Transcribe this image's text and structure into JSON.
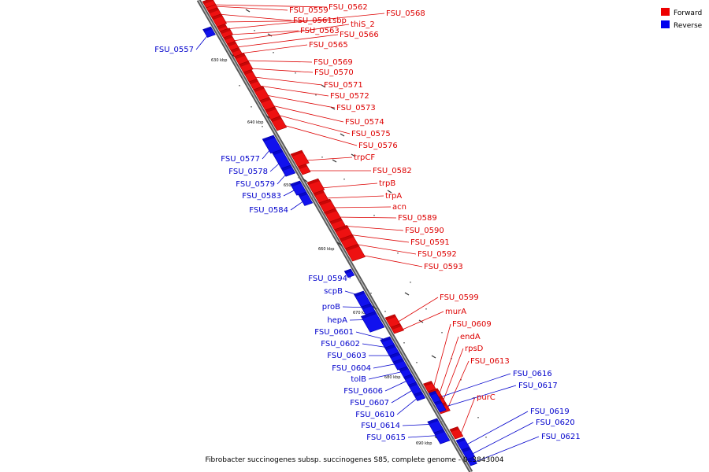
{
  "caption": "Fibrobacter succinogenes subsp. succinogenes S85, complete genome - 0..3843004",
  "legend": [
    {
      "label": "Forward",
      "color": "#ee0000"
    },
    {
      "label": "Reverse",
      "color": "#0000ee"
    }
  ],
  "scale_labels": [
    "630 kbp",
    "640 kbp",
    "650 kbp",
    "660 kbp",
    "670 kbp",
    "680 kbp",
    "690 kbp"
  ],
  "forward_genes": [
    "FSU_0559",
    "FSU_0561",
    "FSU_0562",
    "sbp",
    "FSU_0568",
    "FSU_0563",
    "thiS_2",
    "FSU_0566",
    "FSU_0565",
    "FSU_0569",
    "FSU_0570",
    "FSU_0571",
    "FSU_0572",
    "FSU_0573",
    "FSU_0574",
    "FSU_0575",
    "FSU_0576",
    "trpCF",
    "FSU_0582",
    "trpB",
    "trpA",
    "acn",
    "FSU_0589",
    "FSU_0590",
    "FSU_0591",
    "FSU_0592",
    "FSU_0593",
    "FSU_0599",
    "murA",
    "FSU_0609",
    "endA",
    "rpsD",
    "FSU_0613",
    "purC"
  ],
  "reverse_genes": [
    "FSU_0557",
    "FSU_0577",
    "FSU_0578",
    "FSU_0579",
    "FSU_0583",
    "FSU_0584",
    "FSU_0594",
    "scpB",
    "proB",
    "hepA",
    "FSU_0601",
    "FSU_0602",
    "FSU_0603",
    "FSU_0604",
    "tolB",
    "FSU_0606",
    "FSU_0607",
    "FSU_0610",
    "FSU_0616",
    "FSU_0617",
    "FSU_0614",
    "FSU_0615",
    "FSU_0619",
    "FSU_0620",
    "FSU_0621"
  ]
}
